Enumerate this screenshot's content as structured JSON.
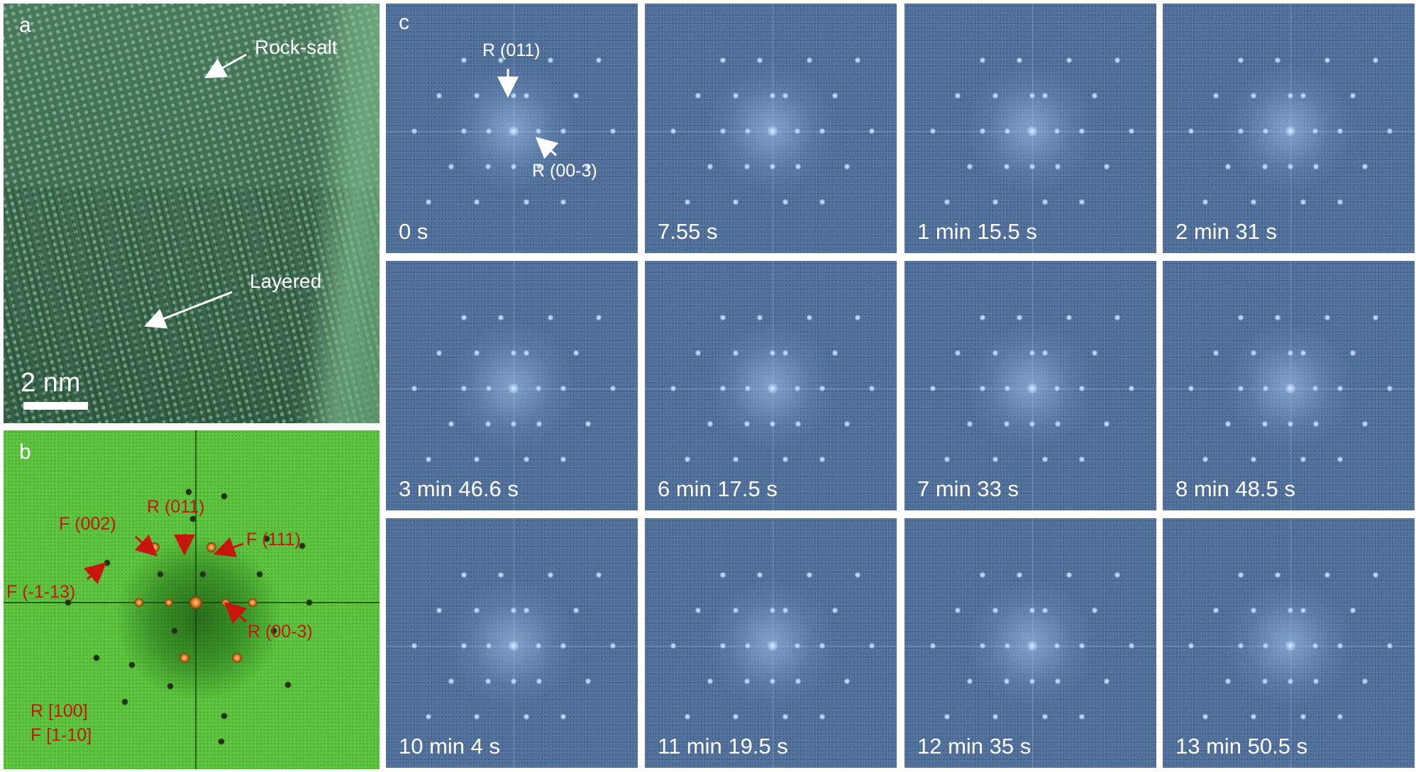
{
  "panel_a": {
    "letter": "a",
    "label_rocksalt": "Rock-salt",
    "label_layered": "Layered",
    "scale_bar": "2 nm"
  },
  "panel_b": {
    "letter": "b",
    "labels": {
      "f002": "F (002)",
      "r011": "R (011)",
      "f111": "F (111)",
      "fm113": "F (-1-13)",
      "r003": "R (00-3)",
      "zone_r": "R [100]",
      "zone_f": "F [1-10]"
    },
    "colors": {
      "label": "#c8160f",
      "background": "#5cc43e"
    }
  },
  "panel_c": {
    "letter": "c",
    "anno_r011": "R (011)",
    "anno_r003": "R (00-3)",
    "frames": [
      "0 s",
      "7.55 s",
      "1 min 15.5 s",
      "2 min 31 s",
      "3 min 46.6 s",
      "6 min 17.5 s",
      "7 min 33 s",
      "8 min 48.5 s",
      "10 min 4 s",
      "11 min 19.5 s",
      "12 min 35 s",
      "13 min 50.5 s"
    ],
    "colors": {
      "tile": "#4f6e98"
    }
  }
}
